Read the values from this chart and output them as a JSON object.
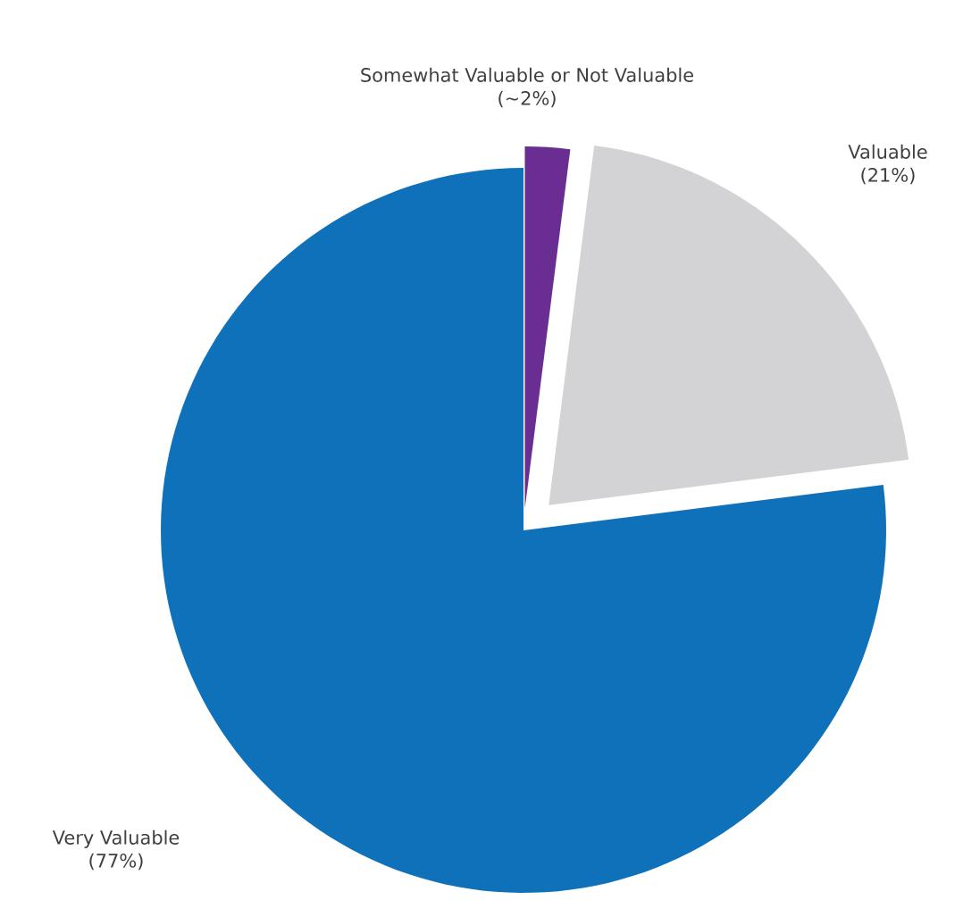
{
  "chart_data": {
    "type": "pie",
    "categories": [
      "Somewhat Valuable or Not Valuable",
      "Valuable",
      "Very Valuable"
    ],
    "values": [
      2,
      21,
      77
    ],
    "colors": [
      "#6a2d91",
      "#d3d3d5",
      "#1071bb"
    ],
    "value_labels": [
      "(~2%)",
      "(21%)",
      "(77%)"
    ]
  }
}
